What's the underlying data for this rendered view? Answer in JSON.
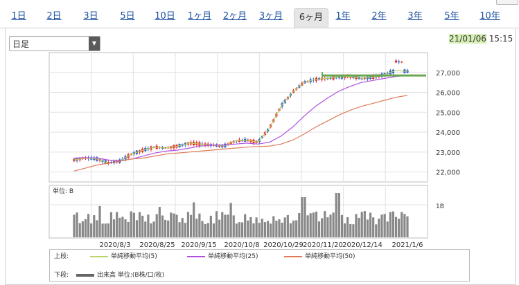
{
  "tabs": [
    {
      "label": "1日",
      "active": false
    },
    {
      "label": "2日",
      "active": false
    },
    {
      "label": "3日",
      "active": false
    },
    {
      "label": "5日",
      "active": false
    },
    {
      "label": "10日",
      "active": false
    },
    {
      "label": "1ヶ月",
      "active": false
    },
    {
      "label": "2ヶ月",
      "active": false
    },
    {
      "label": "3ヶ月",
      "active": false
    },
    {
      "label": "6ヶ月",
      "active": true
    },
    {
      "label": "1年",
      "active": false
    },
    {
      "label": "2年",
      "active": false
    },
    {
      "label": "3年",
      "active": false
    },
    {
      "label": "5年",
      "active": false
    },
    {
      "label": "10年",
      "active": false
    }
  ],
  "period_select": {
    "value": "日足"
  },
  "timestamp": {
    "date": "21/01/06",
    "time": "15:15"
  },
  "colors": {
    "up": "#e8282c",
    "down": "#2b5cc6",
    "ma5": "#b8d46a",
    "ma25": "#b04fe0",
    "ma50": "#e07a55",
    "volume": "#888888",
    "highlight": "#6aa84f"
  },
  "chart_data": {
    "type": "candlestick",
    "y_ticks": [
      "27,000",
      "26,000",
      "25,000",
      "24,000",
      "23,000",
      "22,000"
    ],
    "y_tick_values": [
      27000,
      26000,
      25000,
      24000,
      23000,
      22000
    ],
    "ylim": [
      21500,
      28000
    ],
    "x_labels": [
      "2020/8/3",
      "2020/8/25",
      "2020/9/15",
      "2020/10/8",
      "2020/10/29",
      "2020/11/20",
      "2020/12/14",
      "2021/1/6"
    ],
    "series": [
      {
        "name": "単純移動平均(5)",
        "values_shape": [
          22600,
          22700,
          22650,
          22450,
          22550,
          22900,
          23100,
          23250,
          23200,
          23300,
          23450,
          23400,
          23350,
          23300,
          23550,
          23600,
          23500,
          24200,
          25300,
          26000,
          26500,
          26650,
          26700,
          26750,
          26800,
          26700,
          26750,
          26900,
          27100,
          27050
        ]
      },
      {
        "name": "単純移動平均(25)",
        "values_shape": [
          22700,
          22720,
          22700,
          22600,
          22560,
          22650,
          22800,
          22950,
          23050,
          23100,
          23200,
          23300,
          23350,
          23350,
          23400,
          23450,
          23400,
          23500,
          23800,
          24250,
          24800,
          25300,
          25700,
          26050,
          26300,
          26500,
          26600,
          26700,
          26800,
          26850
        ]
      },
      {
        "name": "単純移動平均(50)",
        "values_shape": [
          22050,
          22200,
          22350,
          22450,
          22550,
          22650,
          22700,
          22800,
          22900,
          22950,
          23000,
          23050,
          23100,
          23150,
          23200,
          23250,
          23280,
          23300,
          23400,
          23600,
          23900,
          24250,
          24550,
          24850,
          25100,
          25300,
          25450,
          25600,
          25750,
          25850
        ]
      }
    ],
    "volume_unit_label": "単位: B",
    "volume_tick": "1B",
    "highlight_level": 26850
  },
  "legend": {
    "upper_label": "上段:",
    "lower_label": "下段:",
    "items": [
      {
        "label": "単純移動平均(5)",
        "color": "#b8d46a"
      },
      {
        "label": "単純移動平均(25)",
        "color": "#b04fe0"
      },
      {
        "label": "単純移動平均(50)",
        "color": "#e07a55"
      }
    ],
    "volume_label": "出来高 単位:(B株/口/枚)"
  }
}
